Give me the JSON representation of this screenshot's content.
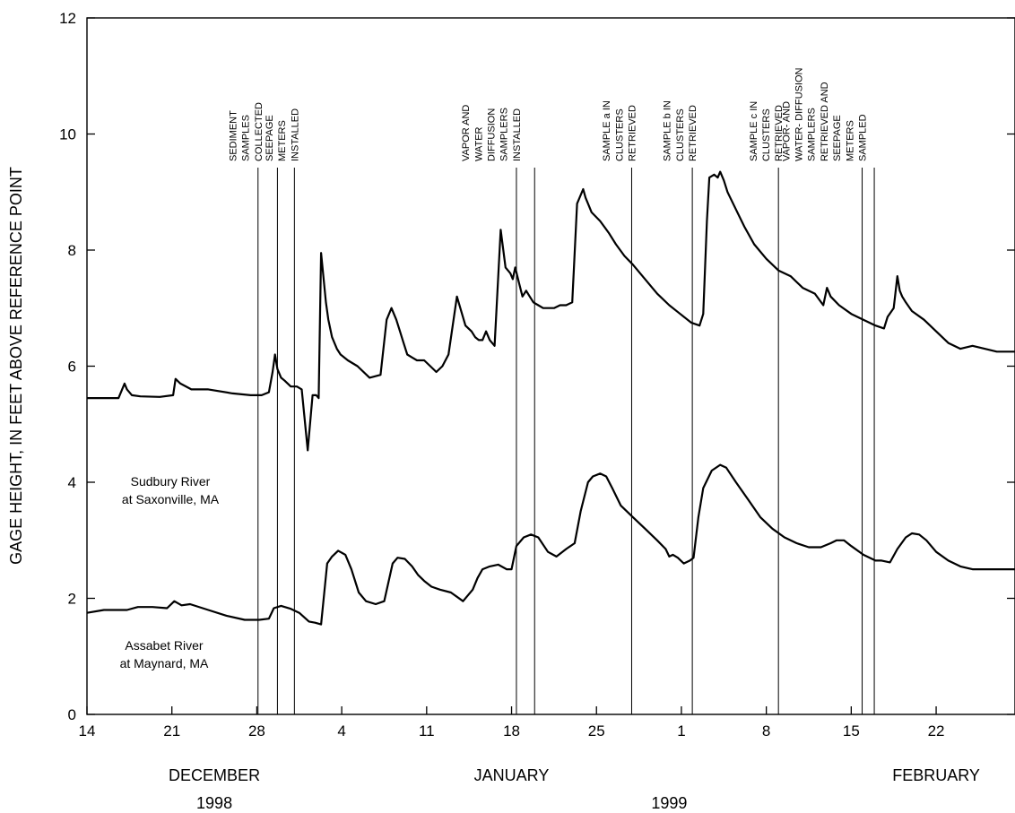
{
  "chart_data": {
    "type": "line",
    "ylabel": "GAGE HEIGHT, IN FEET ABOVE REFERENCE POINT",
    "ylim": [
      0,
      12
    ],
    "yticks": [
      0,
      2,
      4,
      6,
      8,
      10,
      12
    ],
    "xlim": [
      0,
      76.5
    ],
    "x_unit": "days since December 14, 1998",
    "xticks": [
      {
        "x": 0,
        "label": "14"
      },
      {
        "x": 7,
        "label": "21"
      },
      {
        "x": 14,
        "label": "28"
      },
      {
        "x": 21,
        "label": "4"
      },
      {
        "x": 28,
        "label": "11"
      },
      {
        "x": 35,
        "label": "18"
      },
      {
        "x": 42,
        "label": "25"
      },
      {
        "x": 49,
        "label": "1"
      },
      {
        "x": 56,
        "label": "8"
      },
      {
        "x": 63,
        "label": "15"
      },
      {
        "x": 70,
        "label": "22"
      }
    ],
    "months": [
      {
        "label": "DECEMBER",
        "x": 10.5
      },
      {
        "label": "JANUARY",
        "x": 35
      },
      {
        "label": "FEBRUARY",
        "x": 70
      }
    ],
    "years": [
      {
        "label": "1998",
        "x": 10.5
      },
      {
        "label": "1999",
        "x": 48
      }
    ],
    "events": [
      {
        "x": 14.1,
        "lines": [
          "SEDIMENT",
          "SAMPLES",
          "COLLECTED"
        ]
      },
      {
        "x": 15.7,
        "lines": []
      },
      {
        "x": 17.1,
        "lines": [
          "SEEPAGE",
          "METERS",
          "INSTALLED"
        ]
      },
      {
        "x": 35.4,
        "lines": [
          "VAPOR AND",
          "WATER",
          "DIFFUSION",
          "SAMPLERS",
          "INSTALLED"
        ]
      },
      {
        "x": 36.9,
        "lines": []
      },
      {
        "x": 44.9,
        "lines": [
          "SAMPLE a IN",
          "CLUSTERS",
          "RETRIEVED"
        ]
      },
      {
        "x": 49.9,
        "lines": [
          "SAMPLE b IN",
          "CLUSTERS",
          "RETRIEVED"
        ]
      },
      {
        "x": 57.0,
        "lines": [
          "SAMPLE c IN",
          "CLUSTERS",
          "RETRIEVED"
        ]
      },
      {
        "x": 63.9,
        "lines": [
          "VAPOR- AND",
          "WATER- DIFFUSION",
          "SAMPLERS",
          "RETRIEVED AND",
          "SEEPAGE",
          "METERS",
          "SAMPLED"
        ]
      },
      {
        "x": 64.9,
        "lines": []
      }
    ],
    "series": [
      {
        "name": "Sudbury River at Saxonville, MA",
        "label_lines": [
          "Sudbury River",
          "at Saxonville, MA"
        ],
        "x": [
          0,
          2.6,
          3.1,
          3.3,
          3.7,
          4.4,
          6,
          7.1,
          7.3,
          7.7,
          8.6,
          10,
          12,
          13.5,
          14.4,
          15.0,
          15.3,
          15.5,
          15.7,
          16.0,
          16.3,
          16.8,
          17.3,
          17.7,
          18.2,
          18.6,
          18.9,
          19.1,
          19.3,
          19.7,
          19.9,
          20.2,
          20.6,
          20.9,
          21.5,
          22.3,
          23.3,
          24.2,
          24.7,
          25.1,
          25.5,
          25.8,
          26.1,
          26.4,
          26.8,
          27.2,
          27.8,
          28.3,
          28.8,
          29.3,
          29.8,
          30.5,
          31.2,
          31.7,
          32.0,
          32.3,
          32.6,
          32.9,
          33.2,
          33.6,
          34.1,
          34.5,
          34.9,
          35.1,
          35.3,
          35.6,
          35.9,
          36.2,
          36.5,
          36.8,
          37.2,
          37.6,
          38.0,
          38.5,
          39.0,
          39.5,
          40.0,
          40.4,
          40.9,
          41.1,
          41.3,
          41.6,
          42.3,
          43.0,
          43.6,
          44.3,
          45.0,
          46.0,
          47.0,
          48.0,
          48.9,
          49.8,
          50.5,
          50.8,
          51.1,
          51.3,
          51.7,
          52.0,
          52.2,
          52.5,
          52.8,
          53.5,
          54.2,
          55.0,
          56.0,
          57.0,
          58.0,
          59.0,
          60.0,
          60.7,
          61.0,
          61.3,
          62.0,
          63.0,
          64.0,
          65.0,
          65.7,
          66.0,
          66.5,
          66.8,
          67.0,
          67.2,
          67.5,
          68.0,
          69.0,
          70.0,
          71.0,
          72.0,
          73.0,
          74.0,
          75.0,
          75.6,
          76.5
        ],
        "y": [
          5.45,
          5.45,
          5.7,
          5.6,
          5.5,
          5.48,
          5.47,
          5.5,
          5.78,
          5.7,
          5.6,
          5.6,
          5.53,
          5.5,
          5.5,
          5.55,
          5.9,
          6.2,
          5.95,
          5.8,
          5.75,
          5.65,
          5.65,
          5.6,
          4.55,
          5.5,
          5.5,
          5.45,
          7.95,
          7.1,
          6.8,
          6.5,
          6.3,
          6.2,
          6.1,
          6.0,
          5.8,
          5.85,
          6.8,
          7.0,
          6.8,
          6.6,
          6.4,
          6.2,
          6.15,
          6.1,
          6.1,
          6.0,
          5.9,
          6.0,
          6.2,
          7.2,
          6.7,
          6.6,
          6.5,
          6.45,
          6.45,
          6.6,
          6.45,
          6.35,
          8.35,
          7.7,
          7.6,
          7.5,
          7.7,
          7.45,
          7.2,
          7.3,
          7.2,
          7.1,
          7.05,
          7.0,
          7.0,
          7.0,
          7.05,
          7.05,
          7.1,
          8.8,
          9.05,
          8.9,
          8.8,
          8.65,
          8.5,
          8.3,
          8.1,
          7.9,
          7.75,
          7.5,
          7.25,
          7.05,
          6.9,
          6.75,
          6.7,
          6.9,
          8.5,
          9.25,
          9.3,
          9.25,
          9.35,
          9.2,
          9.0,
          8.7,
          8.4,
          8.1,
          7.85,
          7.65,
          7.55,
          7.35,
          7.25,
          7.05,
          7.35,
          7.2,
          7.05,
          6.9,
          6.8,
          6.7,
          6.65,
          6.85,
          7.0,
          7.55,
          7.3,
          7.2,
          7.1,
          6.95,
          6.8,
          6.6,
          6.4,
          6.3,
          6.35,
          6.3,
          6.25,
          6.25,
          6.25
        ]
      },
      {
        "name": "Assabet River at Maynard, MA",
        "label_lines": [
          "Assabet River",
          "at Maynard, MA"
        ],
        "x": [
          0,
          1.4,
          2.5,
          3.3,
          4.2,
          5.4,
          6.6,
          7.2,
          7.8,
          8.5,
          10.0,
          11.5,
          13.0,
          14.2,
          15.0,
          15.4,
          16.0,
          16.8,
          17.5,
          18.3,
          18.8,
          19.3,
          19.8,
          20.2,
          20.7,
          21.3,
          21.8,
          22.4,
          23.0,
          23.8,
          24.5,
          25.2,
          25.6,
          26.2,
          26.8,
          27.3,
          27.8,
          28.4,
          29.1,
          30.0,
          31.0,
          31.8,
          32.2,
          32.6,
          33.2,
          33.9,
          34.6,
          35.0,
          35.4,
          36.0,
          36.6,
          37.2,
          38.0,
          38.7,
          39.5,
          40.2,
          40.7,
          41.3,
          41.7,
          42.3,
          42.8,
          43.3,
          44.0,
          45.0,
          46.0,
          47.0,
          47.7,
          48.0,
          48.3,
          48.7,
          49.2,
          49.7,
          50.0,
          50.4,
          50.8,
          51.5,
          52.2,
          52.7,
          53.5,
          54.5,
          55.5,
          56.5,
          57.5,
          58.5,
          59.5,
          60.5,
          61.3,
          61.8,
          62.4,
          63.0,
          64.0,
          65.0,
          65.5,
          66.2,
          66.8,
          67.5,
          68.0,
          68.6,
          69.2,
          70.0,
          71.0,
          72.0,
          73.0,
          74.0,
          75.0,
          75.7,
          76.5
        ],
        "y": [
          1.75,
          1.8,
          1.8,
          1.8,
          1.85,
          1.85,
          1.83,
          1.95,
          1.88,
          1.9,
          1.8,
          1.7,
          1.63,
          1.63,
          1.65,
          1.83,
          1.87,
          1.82,
          1.75,
          1.6,
          1.58,
          1.55,
          2.6,
          2.72,
          2.82,
          2.75,
          2.5,
          2.1,
          1.95,
          1.9,
          1.95,
          2.6,
          2.7,
          2.68,
          2.55,
          2.4,
          2.3,
          2.2,
          2.15,
          2.1,
          1.95,
          2.15,
          2.35,
          2.5,
          2.55,
          2.58,
          2.5,
          2.5,
          2.9,
          3.05,
          3.1,
          3.05,
          2.8,
          2.72,
          2.85,
          2.95,
          3.5,
          4.0,
          4.1,
          4.15,
          4.1,
          3.9,
          3.6,
          3.4,
          3.2,
          3.0,
          2.85,
          2.72,
          2.75,
          2.7,
          2.6,
          2.65,
          2.7,
          3.4,
          3.9,
          4.2,
          4.3,
          4.25,
          4.0,
          3.7,
          3.4,
          3.2,
          3.05,
          2.95,
          2.88,
          2.88,
          2.95,
          3.0,
          3.0,
          2.9,
          2.75,
          2.65,
          2.65,
          2.62,
          2.85,
          3.05,
          3.12,
          3.1,
          3.0,
          2.8,
          2.65,
          2.55,
          2.5,
          2.5,
          2.5,
          2.5,
          2.5
        ]
      }
    ]
  }
}
